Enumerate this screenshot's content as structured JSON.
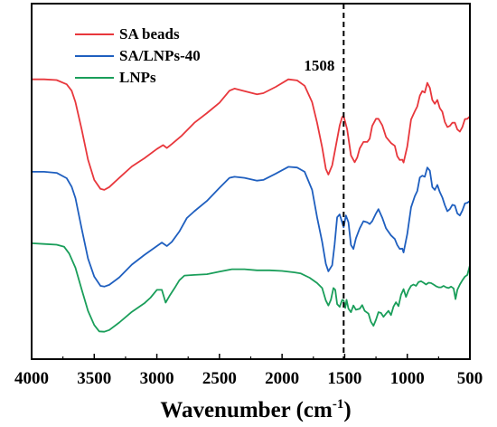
{
  "chart_data": {
    "type": "line",
    "title": "",
    "xlabel": "Wavenumber (cm",
    "xlabel_sup": "-1",
    "xlabel_close": ")",
    "ylabel": "",
    "xlim": [
      4000,
      500
    ],
    "x_reversed": true,
    "ylim": [
      0,
      100
    ],
    "y_ticks_shown": false,
    "x_ticks": [
      4000,
      3500,
      3000,
      2500,
      2000,
      1500,
      1000,
      500
    ],
    "x_tick_labels": [
      "4000",
      "3500",
      "3000",
      "2500",
      "2000",
      "1500",
      "1000",
      "500"
    ],
    "grid": false,
    "legend_position": "top-left",
    "annotation": {
      "x": 1508,
      "label": "1508",
      "style": "dashed-vertical"
    },
    "series": [
      {
        "name": "SA beads",
        "color": "#e8373c",
        "points": [
          [
            4000,
            78.7
          ],
          [
            3900,
            78.7
          ],
          [
            3800,
            78.5
          ],
          [
            3720,
            77.3
          ],
          [
            3680,
            75.5
          ],
          [
            3650,
            72.3
          ],
          [
            3600,
            64.6
          ],
          [
            3550,
            56.1
          ],
          [
            3500,
            50.4
          ],
          [
            3450,
            47.9
          ],
          [
            3420,
            47.6
          ],
          [
            3380,
            48.4
          ],
          [
            3300,
            51.0
          ],
          [
            3200,
            54.2
          ],
          [
            3100,
            56.5
          ],
          [
            3000,
            59.1
          ],
          [
            2950,
            60.2
          ],
          [
            2920,
            59.4
          ],
          [
            2880,
            60.5
          ],
          [
            2800,
            62.9
          ],
          [
            2700,
            66.5
          ],
          [
            2600,
            69.2
          ],
          [
            2500,
            72.1
          ],
          [
            2420,
            75.5
          ],
          [
            2380,
            76.1
          ],
          [
            2300,
            75.4
          ],
          [
            2200,
            74.5
          ],
          [
            2150,
            74.8
          ],
          [
            2050,
            76.6
          ],
          [
            1950,
            78.7
          ],
          [
            1880,
            78.4
          ],
          [
            1820,
            76.9
          ],
          [
            1760,
            72.3
          ],
          [
            1720,
            66.5
          ],
          [
            1680,
            59.6
          ],
          [
            1650,
            53.5
          ],
          [
            1630,
            51.9
          ],
          [
            1600,
            54.5
          ],
          [
            1570,
            60.0
          ],
          [
            1540,
            65.7
          ],
          [
            1520,
            68.1
          ],
          [
            1508,
            68.4
          ],
          [
            1480,
            64.6
          ],
          [
            1450,
            57.3
          ],
          [
            1420,
            55.4
          ],
          [
            1400,
            56.7
          ],
          [
            1380,
            59.3
          ],
          [
            1350,
            61.1
          ],
          [
            1320,
            61.1
          ],
          [
            1300,
            62.0
          ],
          [
            1280,
            65.6
          ],
          [
            1250,
            67.6
          ],
          [
            1230,
            67.6
          ],
          [
            1200,
            65.8
          ],
          [
            1170,
            62.5
          ],
          [
            1130,
            60.8
          ],
          [
            1100,
            60.0
          ],
          [
            1080,
            57.1
          ],
          [
            1060,
            56.0
          ],
          [
            1040,
            56.1
          ],
          [
            1030,
            55.3
          ],
          [
            1000,
            59.8
          ],
          [
            970,
            67.4
          ],
          [
            940,
            69.7
          ],
          [
            920,
            71.1
          ],
          [
            900,
            74.1
          ],
          [
            880,
            75.4
          ],
          [
            860,
            75.0
          ],
          [
            840,
            77.7
          ],
          [
            820,
            76.3
          ],
          [
            800,
            72.9
          ],
          [
            780,
            71.8
          ],
          [
            760,
            72.9
          ],
          [
            740,
            70.6
          ],
          [
            720,
            69.6
          ],
          [
            700,
            66.7
          ],
          [
            680,
            65.3
          ],
          [
            660,
            65.6
          ],
          [
            640,
            66.5
          ],
          [
            620,
            66.5
          ],
          [
            600,
            64.6
          ],
          [
            580,
            64.0
          ],
          [
            560,
            65.3
          ],
          [
            540,
            67.5
          ],
          [
            520,
            67.6
          ],
          [
            500,
            68.3
          ]
        ]
      },
      {
        "name": "SA/LNPs-40",
        "color": "#1f5fbf",
        "points": [
          [
            4000,
            52.7
          ],
          [
            3900,
            52.7
          ],
          [
            3800,
            52.4
          ],
          [
            3720,
            50.9
          ],
          [
            3680,
            48.5
          ],
          [
            3650,
            45.3
          ],
          [
            3600,
            36.7
          ],
          [
            3550,
            28.3
          ],
          [
            3500,
            23.2
          ],
          [
            3450,
            20.6
          ],
          [
            3420,
            20.4
          ],
          [
            3380,
            20.9
          ],
          [
            3300,
            23.0
          ],
          [
            3200,
            26.6
          ],
          [
            3100,
            29.3
          ],
          [
            3000,
            31.8
          ],
          [
            2960,
            32.8
          ],
          [
            2920,
            31.8
          ],
          [
            2880,
            33.0
          ],
          [
            2820,
            35.9
          ],
          [
            2760,
            39.7
          ],
          [
            2700,
            41.6
          ],
          [
            2600,
            44.5
          ],
          [
            2500,
            48.2
          ],
          [
            2420,
            51.0
          ],
          [
            2380,
            51.3
          ],
          [
            2300,
            51.0
          ],
          [
            2200,
            50.2
          ],
          [
            2150,
            50.4
          ],
          [
            2050,
            52.2
          ],
          [
            1950,
            54.1
          ],
          [
            1880,
            53.9
          ],
          [
            1820,
            52.7
          ],
          [
            1760,
            47.6
          ],
          [
            1720,
            39.9
          ],
          [
            1680,
            33.0
          ],
          [
            1650,
            26.8
          ],
          [
            1630,
            24.7
          ],
          [
            1600,
            26.4
          ],
          [
            1580,
            32.3
          ],
          [
            1560,
            39.9
          ],
          [
            1540,
            40.7
          ],
          [
            1508,
            37.1
          ],
          [
            1490,
            40.4
          ],
          [
            1470,
            38.5
          ],
          [
            1450,
            32.1
          ],
          [
            1430,
            31.0
          ],
          [
            1410,
            34.0
          ],
          [
            1380,
            36.8
          ],
          [
            1350,
            38.8
          ],
          [
            1320,
            38.5
          ],
          [
            1300,
            38.0
          ],
          [
            1280,
            38.8
          ],
          [
            1250,
            41.0
          ],
          [
            1230,
            42.2
          ],
          [
            1200,
            39.8
          ],
          [
            1170,
            36.8
          ],
          [
            1130,
            34.8
          ],
          [
            1100,
            33.8
          ],
          [
            1080,
            32.1
          ],
          [
            1060,
            31.0
          ],
          [
            1040,
            31.1
          ],
          [
            1030,
            30.0
          ],
          [
            1000,
            35.2
          ],
          [
            970,
            42.7
          ],
          [
            940,
            45.8
          ],
          [
            920,
            47.3
          ],
          [
            900,
            51.1
          ],
          [
            880,
            51.6
          ],
          [
            860,
            51.3
          ],
          [
            840,
            53.9
          ],
          [
            820,
            53.0
          ],
          [
            800,
            48.4
          ],
          [
            780,
            47.6
          ],
          [
            760,
            49.0
          ],
          [
            740,
            47.0
          ],
          [
            720,
            45.5
          ],
          [
            700,
            43.3
          ],
          [
            680,
            41.6
          ],
          [
            660,
            42.2
          ],
          [
            640,
            43.4
          ],
          [
            620,
            43.2
          ],
          [
            600,
            41.0
          ],
          [
            580,
            40.4
          ],
          [
            560,
            41.8
          ],
          [
            540,
            43.8
          ],
          [
            520,
            44.0
          ],
          [
            500,
            44.5
          ]
        ]
      },
      {
        "name": "LNPs",
        "color": "#1a9e5a",
        "points": [
          [
            4000,
            32.6
          ],
          [
            3900,
            32.4
          ],
          [
            3800,
            32.2
          ],
          [
            3740,
            31.6
          ],
          [
            3700,
            29.7
          ],
          [
            3650,
            25.7
          ],
          [
            3600,
            19.6
          ],
          [
            3550,
            13.6
          ],
          [
            3500,
            9.6
          ],
          [
            3460,
            7.8
          ],
          [
            3420,
            7.7
          ],
          [
            3380,
            8.2
          ],
          [
            3300,
            10.3
          ],
          [
            3200,
            13.3
          ],
          [
            3100,
            15.7
          ],
          [
            3050,
            17.3
          ],
          [
            3000,
            19.5
          ],
          [
            2960,
            19.5
          ],
          [
            2930,
            15.9
          ],
          [
            2900,
            17.7
          ],
          [
            2860,
            19.9
          ],
          [
            2820,
            22.2
          ],
          [
            2780,
            23.5
          ],
          [
            2700,
            23.7
          ],
          [
            2600,
            23.9
          ],
          [
            2500,
            24.6
          ],
          [
            2400,
            25.3
          ],
          [
            2300,
            25.3
          ],
          [
            2200,
            25.0
          ],
          [
            2100,
            25.0
          ],
          [
            2000,
            24.8
          ],
          [
            1900,
            24.4
          ],
          [
            1850,
            24.1
          ],
          [
            1780,
            22.9
          ],
          [
            1720,
            21.4
          ],
          [
            1680,
            20.0
          ],
          [
            1650,
            16.5
          ],
          [
            1630,
            15.1
          ],
          [
            1610,
            16.7
          ],
          [
            1590,
            20.0
          ],
          [
            1575,
            19.5
          ],
          [
            1560,
            15.5
          ],
          [
            1540,
            14.7
          ],
          [
            1520,
            16.7
          ],
          [
            1508,
            16.5
          ],
          [
            1495,
            14.4
          ],
          [
            1485,
            16.7
          ],
          [
            1470,
            14.2
          ],
          [
            1450,
            13.2
          ],
          [
            1430,
            15.1
          ],
          [
            1410,
            13.9
          ],
          [
            1380,
            14.2
          ],
          [
            1360,
            15.2
          ],
          [
            1340,
            13.6
          ],
          [
            1310,
            12.8
          ],
          [
            1290,
            10.5
          ],
          [
            1270,
            9.4
          ],
          [
            1250,
            11.1
          ],
          [
            1230,
            13.2
          ],
          [
            1210,
            13.0
          ],
          [
            1190,
            11.9
          ],
          [
            1170,
            12.8
          ],
          [
            1150,
            13.6
          ],
          [
            1130,
            12.4
          ],
          [
            1110,
            14.8
          ],
          [
            1090,
            16.0
          ],
          [
            1070,
            14.9
          ],
          [
            1050,
            18.1
          ],
          [
            1030,
            19.7
          ],
          [
            1010,
            17.5
          ],
          [
            990,
            19.4
          ],
          [
            970,
            20.6
          ],
          [
            950,
            21.0
          ],
          [
            930,
            20.6
          ],
          [
            910,
            21.7
          ],
          [
            890,
            21.9
          ],
          [
            870,
            21.5
          ],
          [
            850,
            21.0
          ],
          [
            830,
            21.5
          ],
          [
            810,
            21.4
          ],
          [
            790,
            21.0
          ],
          [
            770,
            20.5
          ],
          [
            750,
            20.2
          ],
          [
            730,
            20.2
          ],
          [
            710,
            20.6
          ],
          [
            690,
            20.2
          ],
          [
            670,
            20.0
          ],
          [
            650,
            20.4
          ],
          [
            630,
            19.9
          ],
          [
            615,
            16.9
          ],
          [
            600,
            19.5
          ],
          [
            580,
            21.0
          ],
          [
            560,
            22.2
          ],
          [
            540,
            23.2
          ],
          [
            520,
            23.7
          ],
          [
            500,
            26.4
          ]
        ]
      }
    ]
  }
}
